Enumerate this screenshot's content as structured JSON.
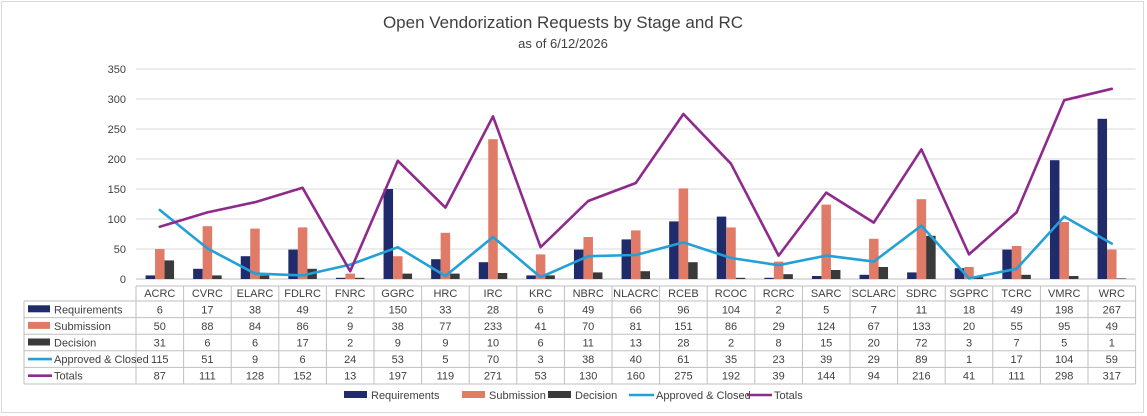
{
  "chart_data": {
    "type": "bar",
    "title": "Open Vendorization Requests by Stage and RC",
    "subtitle": "as of 6/12/2026",
    "categories": [
      "ACRC",
      "CVRC",
      "ELARC",
      "FDLRC",
      "FNRC",
      "GGRC",
      "HRC",
      "IRC",
      "KRC",
      "NBRC",
      "NLACRC",
      "RCEB",
      "RCOC",
      "RCRC",
      "SARC",
      "SCLARC",
      "SDRC",
      "SGPRC",
      "TCRC",
      "VMRC",
      "WRC"
    ],
    "ylim": [
      0,
      350
    ],
    "yticks": [
      0,
      50,
      100,
      150,
      200,
      250,
      300,
      350
    ],
    "grid": true,
    "legend_position": "bottom",
    "data_table": true,
    "series": [
      {
        "name": "Requirements",
        "kind": "bar",
        "color": "#1f2b6b",
        "values": [
          6,
          17,
          38,
          49,
          2,
          150,
          33,
          28,
          6,
          49,
          66,
          96,
          104,
          2,
          5,
          7,
          11,
          18,
          49,
          198,
          267
        ]
      },
      {
        "name": "Submission",
        "kind": "bar",
        "color": "#e07b68",
        "values": [
          50,
          88,
          84,
          86,
          9,
          38,
          77,
          233,
          41,
          70,
          81,
          151,
          86,
          29,
          124,
          67,
          133,
          20,
          55,
          95,
          49
        ]
      },
      {
        "name": "Decision",
        "kind": "bar",
        "color": "#3a3a3a",
        "values": [
          31,
          6,
          6,
          17,
          2,
          9,
          9,
          10,
          6,
          11,
          13,
          28,
          2,
          8,
          15,
          20,
          72,
          3,
          7,
          5,
          1
        ]
      },
      {
        "name": "Approved & Closed",
        "kind": "line",
        "color": "#22a0d8",
        "values": [
          115,
          51,
          9,
          6,
          24,
          53,
          5,
          70,
          3,
          38,
          40,
          61,
          35,
          23,
          39,
          29,
          89,
          1,
          17,
          104,
          59
        ]
      },
      {
        "name": "Totals",
        "kind": "line",
        "color": "#8e2a8c",
        "values": [
          87,
          111,
          128,
          152,
          13,
          197,
          119,
          271,
          53,
          130,
          160,
          275,
          192,
          39,
          144,
          94,
          216,
          41,
          111,
          298,
          317
        ]
      }
    ]
  }
}
